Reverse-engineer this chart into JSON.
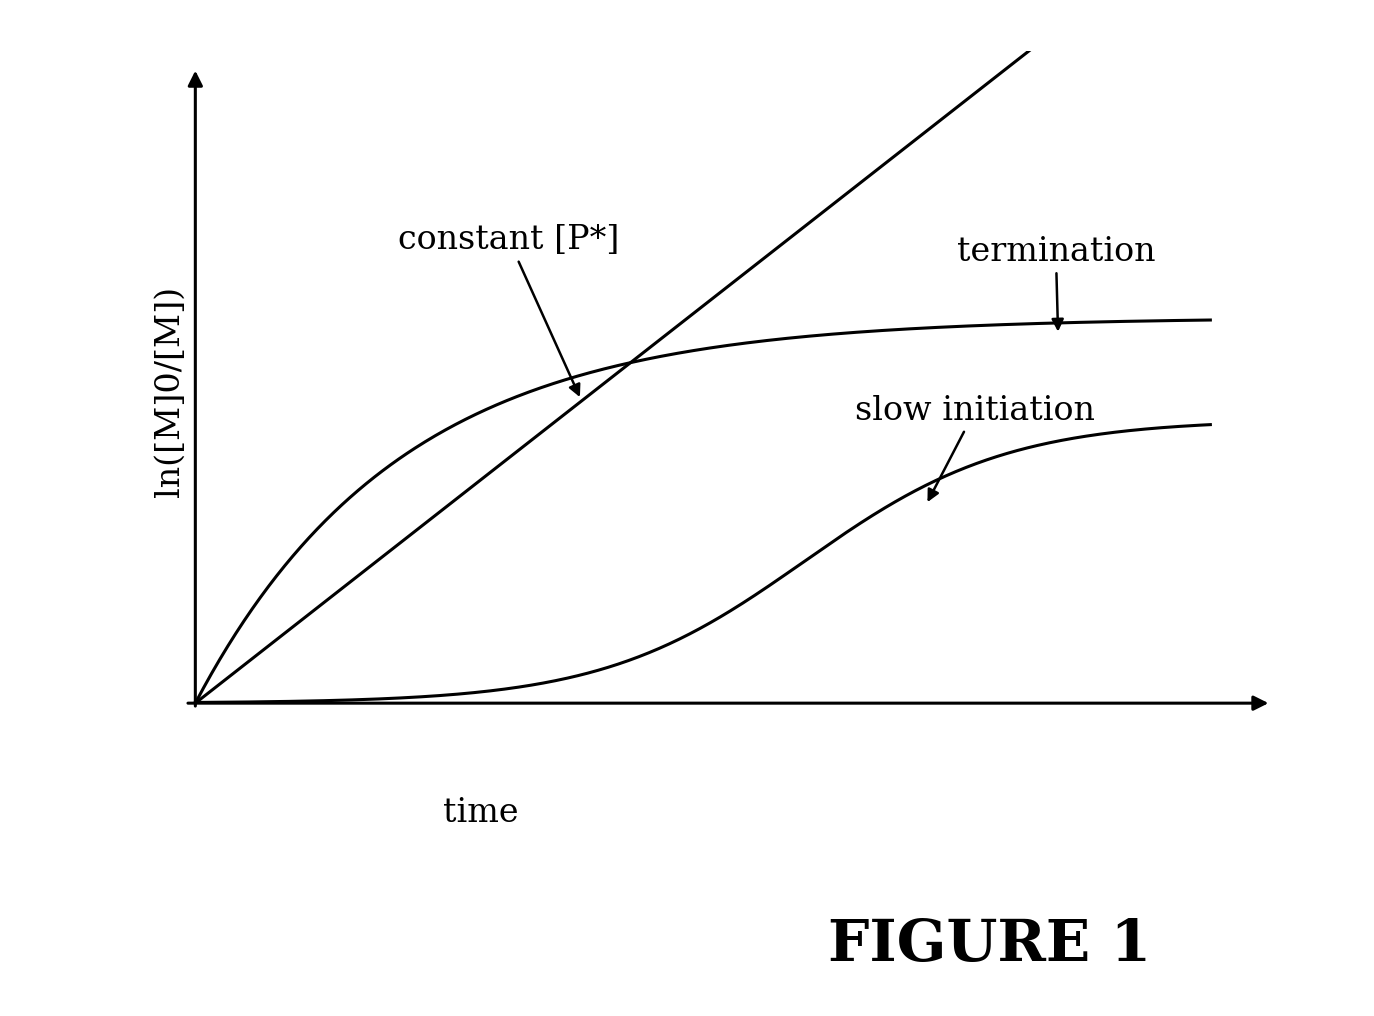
{
  "title": "FIGURE 1",
  "xlabel": "time",
  "ylabel": "ln([M]0/[M])",
  "background_color": "#ffffff",
  "line_color": "#000000",
  "constant_p_label": "constant [P*]",
  "termination_label": "termination",
  "slow_init_label": "slow initiation",
  "title_fontsize": 42,
  "label_fontsize": 24,
  "annotation_fontsize": 24,
  "line_width": 2.2
}
